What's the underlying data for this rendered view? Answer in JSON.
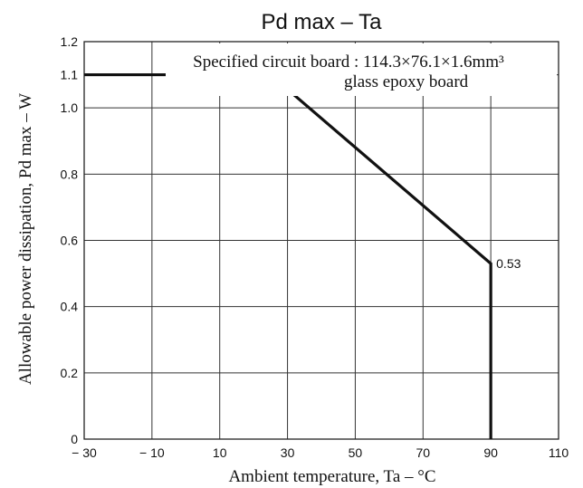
{
  "chart_data": {
    "type": "line",
    "title": "Pd max  –  Ta",
    "xlabel": "Ambient temperature, Ta  –  °C",
    "ylabel": "Allowable power dissipation, Pd max  –  W",
    "xlim": [
      -30,
      110
    ],
    "ylim": [
      0,
      1.2
    ],
    "x_ticks": [
      -30,
      -10,
      10,
      30,
      50,
      70,
      90,
      110
    ],
    "x_tick_labels": [
      "− 30",
      "− 10",
      "10",
      "30",
      "50",
      "70",
      "90",
      "110"
    ],
    "y_ticks": [
      0,
      0.2,
      0.4,
      0.6,
      0.8,
      1.0,
      1.1,
      1.2
    ],
    "y_tick_labels": [
      "0",
      "0.2",
      "0.4",
      "0.6",
      "0.8",
      "1.0",
      "1.1",
      "1.2"
    ],
    "grid": true,
    "series": [
      {
        "x": [
          -30,
          25,
          90,
          90
        ],
        "y": [
          1.1,
          1.1,
          0.53,
          0
        ]
      }
    ],
    "annotations": [
      {
        "text": "0.53",
        "x": 90,
        "y": 0.53
      },
      {
        "text": "Specified circuit board : 114.3×76.1×1.6mm³",
        "x": 48,
        "y": 1.14
      },
      {
        "text": "glass epoxy board",
        "x": 65,
        "y": 1.08
      }
    ]
  }
}
